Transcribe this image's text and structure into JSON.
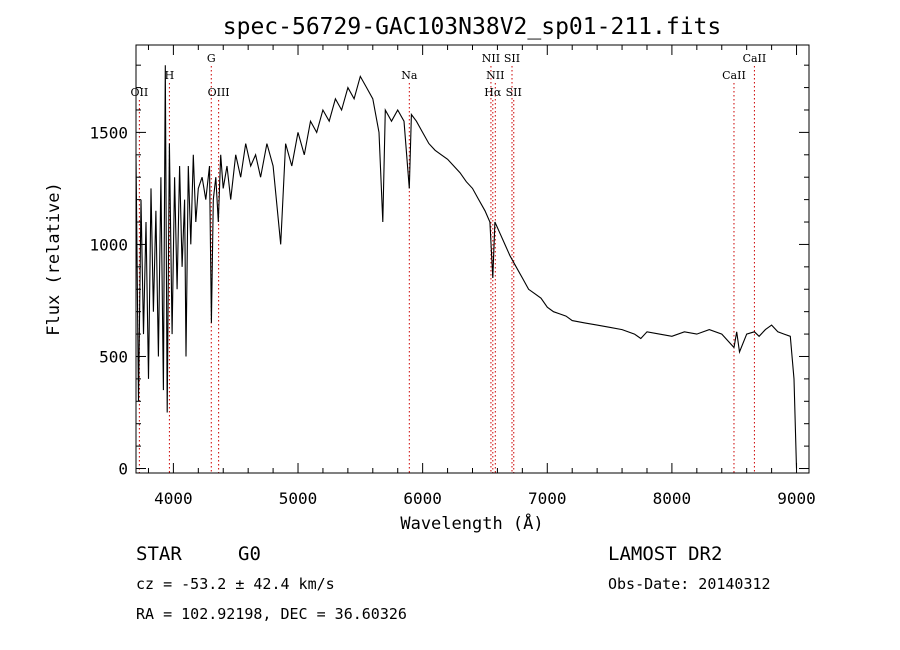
{
  "chart_data": {
    "type": "line",
    "title": "spec-56729-GAC103N38V2_sp01-211.fits",
    "xlabel": "Wavelength (Å)",
    "ylabel": "Flux (relative)",
    "xlim": [
      3700,
      9100
    ],
    "ylim": [
      -20,
      1890
    ],
    "xticks": [
      4000,
      5000,
      6000,
      7000,
      8000,
      9000
    ],
    "yticks": [
      0,
      500,
      1000,
      1500
    ],
    "series": [
      {
        "values_x": [
          3700,
          3720,
          3740,
          3760,
          3780,
          3800,
          3820,
          3840,
          3860,
          3880,
          3900,
          3920,
          3935,
          3950,
          3968,
          3990,
          4010,
          4030,
          4050,
          4070,
          4090,
          4101,
          4120,
          4140,
          4160,
          4180,
          4200,
          4230,
          4260,
          4290,
          4305,
          4320,
          4340,
          4360,
          4380,
          4400,
          4430,
          4460,
          4500,
          4540,
          4580,
          4620,
          4660,
          4700,
          4750,
          4800,
          4861,
          4900,
          4950,
          5000,
          5050,
          5100,
          5150,
          5200,
          5250,
          5300,
          5350,
          5400,
          5450,
          5500,
          5550,
          5600,
          5650,
          5680,
          5700,
          5750,
          5800,
          5850,
          5893,
          5910,
          5950,
          6000,
          6050,
          6100,
          6150,
          6200,
          6250,
          6300,
          6350,
          6400,
          6450,
          6500,
          6540,
          6563,
          6580,
          6620,
          6660,
          6700,
          6750,
          6800,
          6850,
          6900,
          6950,
          7000,
          7050,
          7100,
          7150,
          7200,
          7300,
          7400,
          7500,
          7600,
          7700,
          7750,
          7800,
          7900,
          8000,
          8100,
          8200,
          8300,
          8400,
          8498,
          8520,
          8542,
          8600,
          8662,
          8700,
          8750,
          8800,
          8850,
          8900,
          8950,
          8980,
          9000
        ],
        "values_y": [
          1400,
          300,
          1200,
          600,
          1100,
          400,
          1250,
          700,
          1150,
          500,
          1300,
          350,
          1800,
          250,
          1450,
          600,
          1300,
          800,
          1350,
          900,
          1200,
          500,
          1350,
          1000,
          1400,
          1100,
          1250,
          1300,
          1200,
          1350,
          650,
          1200,
          1300,
          1100,
          1400,
          1250,
          1350,
          1200,
          1400,
          1300,
          1450,
          1350,
          1400,
          1300,
          1450,
          1350,
          1000,
          1450,
          1350,
          1500,
          1400,
          1550,
          1500,
          1600,
          1550,
          1650,
          1600,
          1700,
          1650,
          1750,
          1700,
          1650,
          1500,
          1100,
          1600,
          1550,
          1600,
          1550,
          1250,
          1580,
          1550,
          1500,
          1450,
          1420,
          1400,
          1380,
          1350,
          1320,
          1280,
          1250,
          1200,
          1150,
          1100,
          850,
          1100,
          1050,
          1000,
          950,
          900,
          850,
          800,
          780,
          760,
          720,
          700,
          690,
          680,
          660,
          650,
          640,
          630,
          620,
          600,
          580,
          610,
          600,
          590,
          610,
          600,
          620,
          600,
          540,
          610,
          520,
          600,
          610,
          590,
          620,
          640,
          610,
          600,
          590,
          400,
          0
        ]
      }
    ],
    "line_markers": [
      {
        "label": "OII",
        "x": 3727,
        "row": 3
      },
      {
        "label": "H",
        "x": 3968,
        "row": 2
      },
      {
        "label": "G",
        "x": 4304,
        "row": 1
      },
      {
        "label": "OIII",
        "x": 4363,
        "row": 3
      },
      {
        "label": "Na",
        "x": 5893,
        "row": 2
      },
      {
        "label": "NII",
        "x": 6548,
        "row": 1
      },
      {
        "label": "SII",
        "x": 6717,
        "row": 1
      },
      {
        "label": "NII",
        "x": 6583,
        "row": 2
      },
      {
        "label": "Hα",
        "x": 6563,
        "row": 3
      },
      {
        "label": "SII",
        "x": 6731,
        "row": 3
      },
      {
        "label": "CaII",
        "x": 8498,
        "row": 2
      },
      {
        "label": "CaII",
        "x": 8662,
        "row": 1
      }
    ],
    "grid": false,
    "marker_color": "#cc0000"
  },
  "info": {
    "class": "STAR",
    "subclass": "G0",
    "survey": "LAMOST DR2",
    "cz": "cz = -53.2 ± 42.4 km/s",
    "obs_date": "Obs-Date: 20140312",
    "coords": "RA = 102.92198, DEC =  36.60326"
  }
}
